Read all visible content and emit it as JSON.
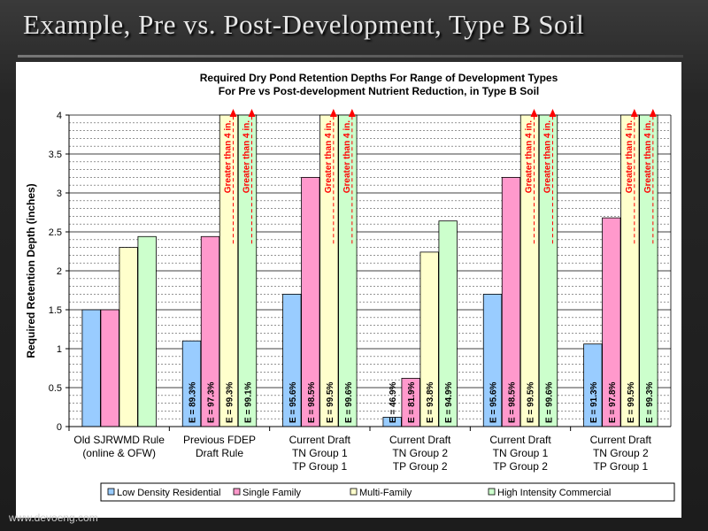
{
  "slide": {
    "title": "Example, Pre vs. Post-Development, Type B Soil",
    "footer": "www.devoeng.com"
  },
  "colors": {
    "series": [
      "#99ccff",
      "#ff99cc",
      "#ffffcc",
      "#ccffcc"
    ],
    "arrow": "#ff0000",
    "grid": "#000000",
    "plot_bg": "#ffffff"
  },
  "chart_data": {
    "type": "bar",
    "title_lines": [
      "Required Dry Pond Retention Depths For Range of Development Types",
      "For Pre vs Post-development Nutrient Reduction, in Type B Soil"
    ],
    "ylabel": "Required Retention Depth (inches)",
    "xlabel": "",
    "ylim": [
      0,
      4
    ],
    "yticks": [
      0,
      0.5,
      1,
      1.5,
      2,
      2.5,
      3,
      3.5,
      4
    ],
    "ytick_labels": [
      "0",
      "0.5",
      "1",
      "1.5",
      "2",
      "2.5",
      "3",
      "3.5",
      "4"
    ],
    "grid": true,
    "legend_position": "bottom",
    "categories": [
      [
        "Old SJRWMD Rule",
        "(online & OFW)"
      ],
      [
        "Previous FDEP",
        "Draft Rule"
      ],
      [
        "Current Draft",
        "TN Group 1",
        "TP Group 1"
      ],
      [
        "Current Draft",
        "TN Group 2",
        "TP Group 2"
      ],
      [
        "Current Draft",
        "TN Group 1",
        "TP Group 2"
      ],
      [
        "Current Draft",
        "TN Group 2",
        "TP Group 1"
      ]
    ],
    "series": [
      {
        "name": "Low Density Residential",
        "values": [
          1.5,
          1.1,
          1.7,
          0.12,
          1.7,
          1.06
        ],
        "labels": [
          "",
          "E = 89.3%",
          "E = 95.6%",
          "E = 46.9%",
          "E = 95.6%",
          "E = 91.3%"
        ],
        "exceeds": [
          false,
          false,
          false,
          false,
          false,
          false
        ]
      },
      {
        "name": "Single Family",
        "values": [
          1.5,
          2.44,
          3.2,
          0.62,
          3.2,
          2.68
        ],
        "labels": [
          "",
          "E = 97.3%",
          "E = 98.5%",
          "E = 81.9%",
          "E = 98.5%",
          "E = 97.8%"
        ],
        "exceeds": [
          false,
          false,
          false,
          false,
          false,
          false
        ]
      },
      {
        "name": "Multi-Family",
        "values": [
          2.3,
          4,
          4,
          2.24,
          4,
          4
        ],
        "labels": [
          "",
          "E = 99.3%",
          "E = 99.5%",
          "E = 93.8%",
          "E = 99.5%",
          "E = 99.5%"
        ],
        "exceeds": [
          false,
          true,
          true,
          false,
          true,
          true
        ]
      },
      {
        "name": "High Intensity Commercial",
        "values": [
          2.44,
          4,
          4,
          2.64,
          4,
          4
        ],
        "labels": [
          "",
          "E = 99.1%",
          "E = 99.6%",
          "E = 94.9%",
          "E = 99.6%",
          "E = 99.3%"
        ],
        "exceeds": [
          false,
          true,
          true,
          false,
          true,
          true
        ]
      }
    ],
    "exceed_annotation": "Greater than 4 in."
  }
}
